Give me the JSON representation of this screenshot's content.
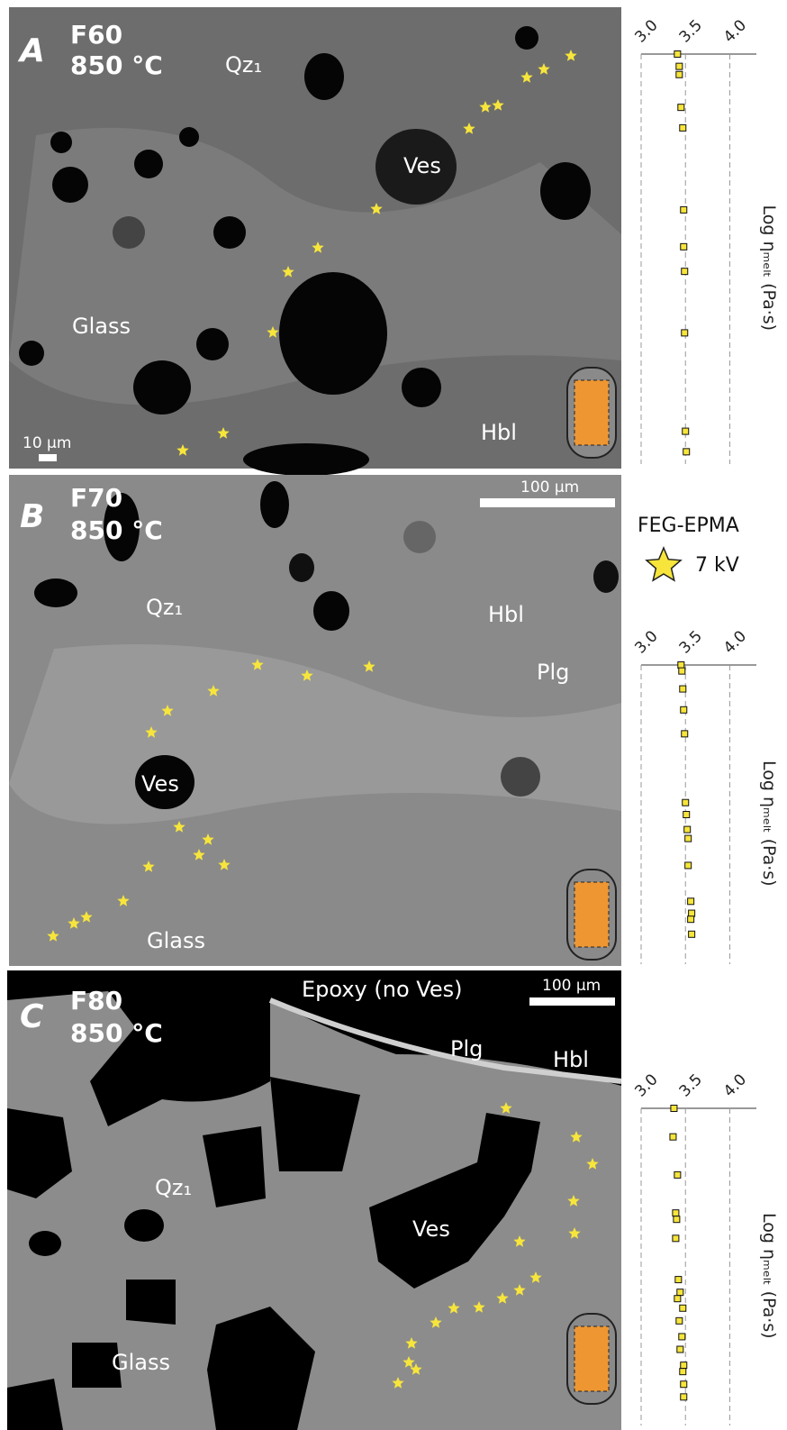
{
  "panels": [
    {
      "letter": "A",
      "sample": "F60",
      "temperature": "850 °C",
      "labels": [
        "Qz₁",
        "Ves",
        "Glass",
        "Hbl"
      ],
      "scale_bar": "10 µm"
    },
    {
      "letter": "B",
      "sample": "F70",
      "temperature": "850 °C",
      "labels": [
        "Qz₁",
        "Hbl",
        "Plg",
        "Ves",
        "Glass"
      ],
      "scale_bar": "100 µm"
    },
    {
      "letter": "C",
      "sample": "F80",
      "temperature": "850 °C",
      "labels": [
        "Epoxy (no Ves)",
        "Plg",
        "Hbl",
        "Qz₁",
        "Ves",
        "Glass"
      ],
      "scale_bar": "100 µm"
    }
  ],
  "legend": {
    "title": "FEG-EPMA",
    "label": "7 kV",
    "color": "#f7e53b"
  },
  "chart_data": [
    {
      "type": "strip",
      "x_label": "Log ηₘₑₗₜ (Pa·s)",
      "xlim": [
        3.0,
        4.3
      ],
      "xticks": [
        {
          "value": 3,
          "label": "3.0"
        },
        3.5,
        {
          "value": 4,
          "label": "4.0"
        }
      ],
      "ylim": [
        0,
        100
      ],
      "color": "#f7e53b",
      "grid": true,
      "values": [
        3.41,
        3.43,
        3.43,
        3.45,
        3.47,
        3.48,
        3.48,
        3.49,
        3.49,
        3.5,
        3.51
      ],
      "positions": [
        0,
        3,
        5,
        13,
        18,
        38,
        47,
        53,
        68,
        92,
        97
      ]
    },
    {
      "type": "strip",
      "x_label": "Log ηₘₑₗₜ (Pa·s)",
      "xlim": [
        3.0,
        4.3
      ],
      "xticks": [
        {
          "value": 3,
          "label": "3.0"
        },
        3.5,
        {
          "value": 4,
          "label": "4.0"
        }
      ],
      "ylim": [
        0,
        100
      ],
      "color": "#f7e53b",
      "grid": true,
      "values": [
        3.45,
        3.46,
        3.47,
        3.48,
        3.49,
        3.5,
        3.51,
        3.52,
        3.53,
        3.53,
        3.56,
        3.57,
        3.56,
        3.57
      ],
      "positions": [
        0,
        2,
        8,
        15,
        23,
        46,
        50,
        55,
        58,
        67,
        79,
        83,
        85,
        90
      ]
    },
    {
      "type": "strip",
      "x_label": "Log ηₘₑₗₜ (Pa·s)",
      "xlim": [
        3.0,
        4.3
      ],
      "xticks": [
        {
          "value": 3,
          "label": "3.0"
        },
        3.5,
        {
          "value": 4,
          "label": "4.0"
        }
      ],
      "ylim": [
        0,
        100
      ],
      "color": "#f7e53b",
      "grid": true,
      "values": [
        3.37,
        3.36,
        3.41,
        3.39,
        3.4,
        3.39,
        3.42,
        3.44,
        3.41,
        3.47,
        3.43,
        3.46,
        3.44,
        3.48,
        3.47,
        3.48,
        3.48
      ],
      "positions": [
        0,
        9,
        21,
        33,
        35,
        41,
        54,
        58,
        60,
        63,
        67,
        72,
        76,
        81,
        83,
        87,
        91
      ]
    }
  ]
}
